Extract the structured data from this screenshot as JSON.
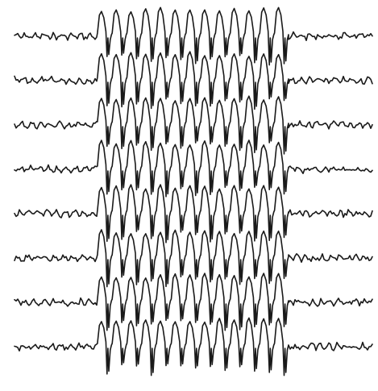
{
  "figure": {
    "description_visible_text": "",
    "channels": [
      {
        "label": ""
      },
      {
        "label": ""
      },
      {
        "label": ""
      },
      {
        "label": ""
      },
      {
        "label": ""
      },
      {
        "label": ""
      },
      {
        "label": ""
      },
      {
        "label": ""
      }
    ],
    "burst": {
      "type": "generalized spike-and-wave discharge",
      "cycles": 13
    },
    "colors": {
      "background": "#ffffff",
      "trace": "#1a1a1a"
    }
  }
}
